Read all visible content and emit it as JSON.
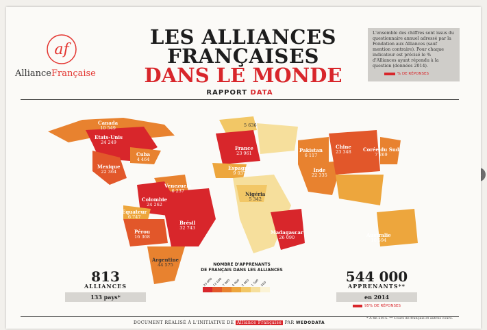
{
  "nav": {
    "prev_glyph": "❮",
    "next_glyph": "❯"
  },
  "logo": {
    "mark": "af",
    "name_a": "Alliance",
    "name_b": "Française"
  },
  "title": {
    "line1": "LES ALLIANCES",
    "line2": "FRANÇAISES",
    "line3": "DANS LE MONDE"
  },
  "subtitle": {
    "part1": "RAPPORT ",
    "part2": "DATA"
  },
  "note": {
    "text": "L'ensemble des chiffres sont issus du questionnaire annuel adressé par la Fondation aux Alliances (sauf mention contraire). Pour chaque indicateur est précisé le % d'Alliances ayant répondu à la question (données 2014).",
    "legend": "% DE RÉPONSES"
  },
  "countries": [
    {
      "name": "Canada",
      "value": "10 549"
    },
    {
      "name": "Etats-Unis",
      "value": "24 249"
    },
    {
      "name": "Cuba",
      "value": "4 464"
    },
    {
      "name": "Mexique",
      "value": "22 364"
    },
    {
      "name": "Venezuela",
      "value": "6 237"
    },
    {
      "name": "Colombie",
      "value": "24 262"
    },
    {
      "name": "Equateur",
      "value": "6 747"
    },
    {
      "name": "Pérou",
      "value": "16 368"
    },
    {
      "name": "Brésil",
      "value": "32 743"
    },
    {
      "name": "Argentine",
      "value": "44 575"
    },
    {
      "name": "",
      "value": "5 636"
    },
    {
      "name": "France",
      "value": "23 961"
    },
    {
      "name": "Espagne",
      "value": "9 037"
    },
    {
      "name": "Nigéria",
      "value": "5 342"
    },
    {
      "name": "Madagascar",
      "value": "26 090"
    },
    {
      "name": "Pakistan",
      "value": "6 117"
    },
    {
      "name": "Inde",
      "value": "22 335"
    },
    {
      "name": "Chine",
      "value": "23 348"
    },
    {
      "name": "Corée du Sud",
      "value": "7 269"
    },
    {
      "name": "Australie",
      "value": "10 594"
    }
  ],
  "stats": {
    "alliances_number": "813",
    "alliances_label": "ALLIANCES",
    "countries": "133 pays*",
    "learners_number": "544 000",
    "learners_label": "APPRENANTS**",
    "learners_year": "en 2014",
    "learners_pct": "95% DE RÉPONSES"
  },
  "scale": {
    "title_line1": "NOMBRE D'APPRENANTS",
    "title_line2": "DE FRANÇAIS DANS LES ALLIANCES",
    "ticks": [
      "25 000",
      "12 000",
      "7 000",
      "4 000",
      "2 000",
      "1 500",
      "500"
    ],
    "colors": [
      "#d8262b",
      "#e2572a",
      "#e8822f",
      "#eda63d",
      "#f2c766",
      "#f6df9c",
      "#fbf3d6"
    ]
  },
  "footer": {
    "text": "DOCUMENT RÉALISÉ À L'INITIATIVE DE",
    "af": "Alliance Française",
    "par": "PAR",
    "wedo": "WEDODATA"
  },
  "footnote": "* À fin 2015.  ** Cours de français et autres cours."
}
